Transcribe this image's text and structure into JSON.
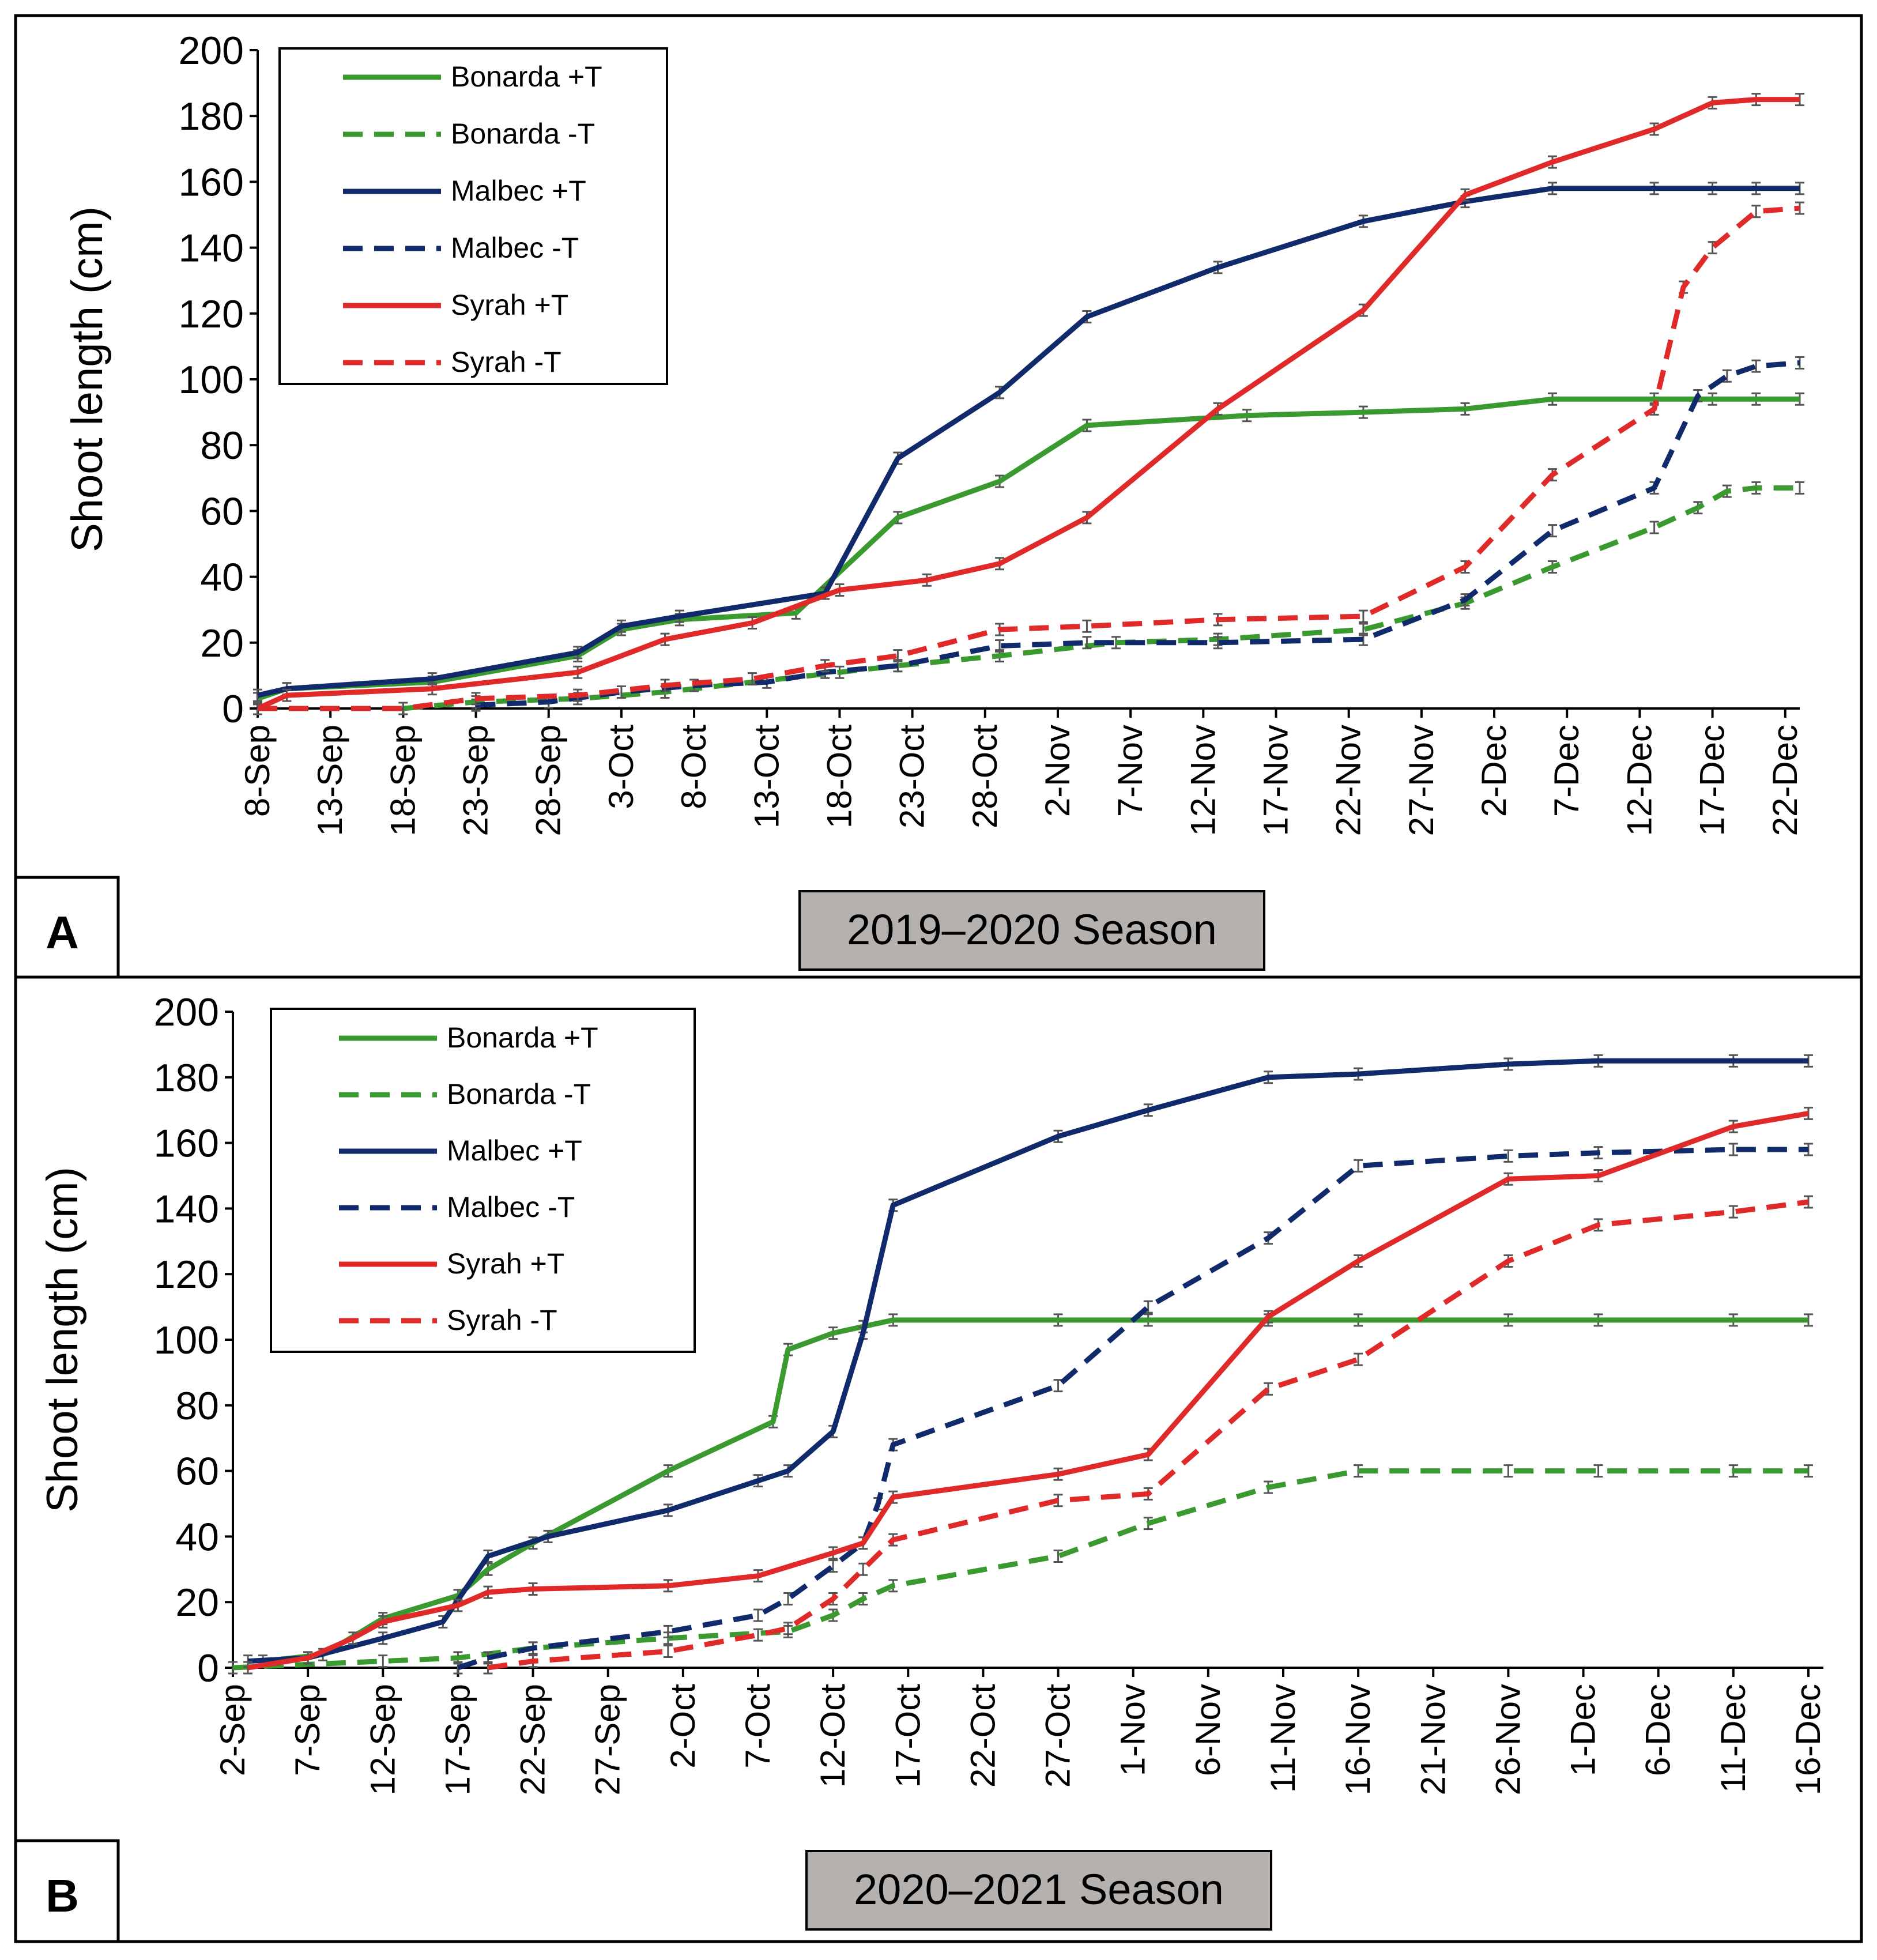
{
  "colors": {
    "bonarda": "#3a9a2f",
    "malbec": "#102a6b",
    "syrah": "#e02a2a",
    "season_box_fill": "#b5b1ae",
    "axis": "#000000",
    "errorbar": "#555555"
  },
  "chart_data": [
    {
      "type": "line",
      "panel_label": "A",
      "season_label": "2019–2020 Season",
      "ylabel": "Shoot length (cm)",
      "xlabel": "",
      "ylim": [
        0,
        200
      ],
      "yticks": [
        0,
        20,
        40,
        60,
        80,
        100,
        120,
        140,
        160,
        180,
        200
      ],
      "x_start": "2019-09-08",
      "x_end": "2019-12-23",
      "xtick_labels": [
        "8-Sep",
        "13-Sep",
        "18-Sep",
        "23-Sep",
        "28-Sep",
        "3-Oct",
        "8-Oct",
        "13-Oct",
        "18-Oct",
        "23-Oct",
        "28-Oct",
        "2-Nov",
        "7-Nov",
        "12-Nov",
        "17-Nov",
        "22-Nov",
        "27-Nov",
        "2-Dec",
        "7-Dec",
        "12-Dec",
        "17-Dec",
        "22-Dec"
      ],
      "grid": false,
      "legend": "top-left",
      "series": [
        {
          "name": "Bonarda +T",
          "color_key": "bonarda",
          "dashed": false,
          "x": [
            "2019-09-08",
            "2019-09-10",
            "2019-09-20",
            "2019-09-30",
            "2019-10-03",
            "2019-10-07",
            "2019-10-15",
            "2019-10-22",
            "2019-10-29",
            "2019-11-04",
            "2019-11-15",
            "2019-11-23",
            "2019-11-30",
            "2019-12-06",
            "2019-12-13",
            "2019-12-17",
            "2019-12-20",
            "2019-12-23"
          ],
          "y": [
            3,
            6,
            8,
            16,
            24,
            27,
            29,
            58,
            69,
            86,
            89,
            90,
            91,
            94,
            94,
            94,
            94,
            94
          ]
        },
        {
          "name": "Bonarda -T",
          "color_key": "bonarda",
          "dashed": true,
          "x": [
            "2019-09-18",
            "2019-09-23",
            "2019-09-30",
            "2019-10-06",
            "2019-10-18",
            "2019-10-22",
            "2019-10-29",
            "2019-11-06",
            "2019-11-13",
            "2019-11-23",
            "2019-11-30",
            "2019-12-06",
            "2019-12-13",
            "2019-12-16",
            "2019-12-18",
            "2019-12-20",
            "2019-12-23"
          ],
          "y": [
            0,
            2,
            3,
            5,
            11,
            13,
            16,
            20,
            21,
            24,
            32,
            43,
            55,
            61,
            66,
            67,
            67
          ]
        },
        {
          "name": "Malbec +T",
          "color_key": "malbec",
          "dashed": false,
          "x": [
            "2019-09-08",
            "2019-09-10",
            "2019-09-20",
            "2019-09-30",
            "2019-10-03",
            "2019-10-07",
            "2019-10-17",
            "2019-10-22",
            "2019-10-29",
            "2019-11-04",
            "2019-11-13",
            "2019-11-23",
            "2019-11-30",
            "2019-12-06",
            "2019-12-13",
            "2019-12-17",
            "2019-12-20",
            "2019-12-23"
          ],
          "y": [
            4,
            6,
            9,
            17,
            25,
            28,
            35,
            76,
            96,
            119,
            134,
            148,
            154,
            158,
            158,
            158,
            158,
            158
          ]
        },
        {
          "name": "Malbec -T",
          "color_key": "malbec",
          "dashed": true,
          "x": [
            "2019-09-23",
            "2019-09-28",
            "2019-10-03",
            "2019-10-08",
            "2019-10-13",
            "2019-10-17",
            "2019-10-22",
            "2019-10-29",
            "2019-11-04",
            "2019-11-13",
            "2019-11-23",
            "2019-11-30",
            "2019-12-06",
            "2019-12-13",
            "2019-12-16",
            "2019-12-18",
            "2019-12-20",
            "2019-12-23"
          ],
          "y": [
            1,
            2,
            5,
            7,
            8,
            11,
            13,
            19,
            20,
            20,
            21,
            33,
            54,
            67,
            95,
            101,
            104,
            105
          ]
        },
        {
          "name": "Syrah +T",
          "color_key": "syrah",
          "dashed": false,
          "x": [
            "2019-09-08",
            "2019-09-10",
            "2019-09-20",
            "2019-09-30",
            "2019-10-06",
            "2019-10-12",
            "2019-10-18",
            "2019-10-24",
            "2019-10-29",
            "2019-11-04",
            "2019-11-13",
            "2019-11-23",
            "2019-11-30",
            "2019-12-06",
            "2019-12-13",
            "2019-12-17",
            "2019-12-20",
            "2019-12-23"
          ],
          "y": [
            0,
            4,
            6,
            11,
            21,
            26,
            36,
            39,
            44,
            58,
            91,
            121,
            156,
            166,
            176,
            184,
            185,
            185
          ]
        },
        {
          "name": "Syrah -T",
          "color_key": "syrah",
          "dashed": true,
          "x": [
            "2019-09-08",
            "2019-09-18",
            "2019-09-23",
            "2019-09-30",
            "2019-10-06",
            "2019-10-12",
            "2019-10-17",
            "2019-10-22",
            "2019-10-29",
            "2019-11-04",
            "2019-11-13",
            "2019-11-23",
            "2019-11-30",
            "2019-12-06",
            "2019-12-13",
            "2019-12-15",
            "2019-12-17",
            "2019-12-20",
            "2019-12-23"
          ],
          "y": [
            0,
            0,
            3,
            4,
            7,
            9,
            13,
            16,
            24,
            25,
            27,
            28,
            43,
            71,
            91,
            128,
            140,
            151,
            152
          ]
        }
      ]
    },
    {
      "type": "line",
      "panel_label": "B",
      "season_label": "2020–2021 Season",
      "ylabel": "Shoot length (cm)",
      "xlabel": "",
      "ylim": [
        0,
        200
      ],
      "yticks": [
        0,
        20,
        40,
        60,
        80,
        100,
        120,
        140,
        160,
        180,
        200
      ],
      "x_start": "2020-09-02",
      "x_end": "2020-12-17",
      "xtick_labels": [
        "2-Sep",
        "7-Sep",
        "12-Sep",
        "17-Sep",
        "22-Sep",
        "27-Sep",
        "2-Oct",
        "7-Oct",
        "12-Oct",
        "17-Oct",
        "22-Oct",
        "27-Oct",
        "1-Nov",
        "6-Nov",
        "11-Nov",
        "16-Nov",
        "21-Nov",
        "26-Nov",
        "1-Dec",
        "6-Dec",
        "11-Dec",
        "16-Dec"
      ],
      "grid": false,
      "legend": "top-left",
      "series": [
        {
          "name": "Bonarda +T",
          "color_key": "bonarda",
          "dashed": false,
          "x": [
            "2020-09-04",
            "2020-09-08",
            "2020-09-12",
            "2020-09-17",
            "2020-09-19",
            "2020-09-22",
            "2020-10-01",
            "2020-10-08",
            "2020-10-09",
            "2020-10-12",
            "2020-10-14",
            "2020-10-16",
            "2020-10-27",
            "2020-11-02",
            "2020-11-10",
            "2020-11-16",
            "2020-11-26",
            "2020-12-02",
            "2020-12-11",
            "2020-12-16"
          ],
          "y": [
            2,
            4,
            15,
            22,
            30,
            38,
            60,
            75,
            97,
            102,
            104,
            106,
            106,
            106,
            106,
            106,
            106,
            106,
            106,
            106
          ]
        },
        {
          "name": "Bonarda -T",
          "color_key": "bonarda",
          "dashed": true,
          "x": [
            "2020-09-02",
            "2020-09-12",
            "2020-09-17",
            "2020-09-22",
            "2020-10-01",
            "2020-10-09",
            "2020-10-12",
            "2020-10-14",
            "2020-10-16",
            "2020-10-27",
            "2020-11-02",
            "2020-11-10",
            "2020-11-16",
            "2020-11-26",
            "2020-12-02",
            "2020-12-11",
            "2020-12-16"
          ],
          "y": [
            0,
            2,
            3,
            6,
            9,
            11,
            16,
            21,
            25,
            34,
            44,
            55,
            60,
            60,
            60,
            60,
            60
          ]
        },
        {
          "name": "Malbec +T",
          "color_key": "malbec",
          "dashed": false,
          "x": [
            "2020-09-03",
            "2020-09-07",
            "2020-09-12",
            "2020-09-16",
            "2020-09-19",
            "2020-09-23",
            "2020-10-01",
            "2020-10-07",
            "2020-10-09",
            "2020-10-12",
            "2020-10-14",
            "2020-10-16",
            "2020-10-27",
            "2020-11-02",
            "2020-11-10",
            "2020-11-16",
            "2020-11-26",
            "2020-12-02",
            "2020-12-11",
            "2020-12-16"
          ],
          "y": [
            2,
            3,
            9,
            14,
            34,
            40,
            48,
            57,
            60,
            72,
            102,
            141,
            162,
            170,
            180,
            181,
            184,
            185,
            185,
            185
          ]
        },
        {
          "name": "Malbec -T",
          "color_key": "malbec",
          "dashed": true,
          "x": [
            "2020-09-17",
            "2020-09-19",
            "2020-09-22",
            "2020-10-01",
            "2020-10-07",
            "2020-10-09",
            "2020-10-12",
            "2020-10-14",
            "2020-10-15",
            "2020-10-16",
            "2020-10-27",
            "2020-11-02",
            "2020-11-10",
            "2020-11-16",
            "2020-11-26",
            "2020-12-02",
            "2020-12-11",
            "2020-12-16"
          ],
          "y": [
            0,
            3,
            6,
            11,
            16,
            21,
            31,
            38,
            50,
            68,
            86,
            110,
            131,
            153,
            156,
            157,
            158,
            158
          ]
        },
        {
          "name": "Syrah +T",
          "color_key": "syrah",
          "dashed": false,
          "x": [
            "2020-09-03",
            "2020-09-07",
            "2020-09-10",
            "2020-09-12",
            "2020-09-17",
            "2020-09-19",
            "2020-09-22",
            "2020-10-01",
            "2020-10-07",
            "2020-10-12",
            "2020-10-14",
            "2020-10-16",
            "2020-10-27",
            "2020-11-02",
            "2020-11-10",
            "2020-11-16",
            "2020-11-26",
            "2020-12-02",
            "2020-12-11",
            "2020-12-16"
          ],
          "y": [
            0,
            3,
            9,
            14,
            19,
            23,
            24,
            25,
            28,
            35,
            38,
            52,
            59,
            65,
            107,
            124,
            149,
            150,
            165,
            169
          ]
        },
        {
          "name": "Syrah -T",
          "color_key": "syrah",
          "dashed": true,
          "x": [
            "2020-09-19",
            "2020-09-22",
            "2020-10-01",
            "2020-10-07",
            "2020-10-09",
            "2020-10-12",
            "2020-10-14",
            "2020-10-16",
            "2020-10-27",
            "2020-11-02",
            "2020-11-10",
            "2020-11-16",
            "2020-11-26",
            "2020-12-02",
            "2020-12-11",
            "2020-12-16"
          ],
          "y": [
            0,
            2,
            5,
            10,
            12,
            21,
            30,
            39,
            51,
            53,
            85,
            94,
            124,
            135,
            139,
            142
          ]
        }
      ]
    }
  ]
}
